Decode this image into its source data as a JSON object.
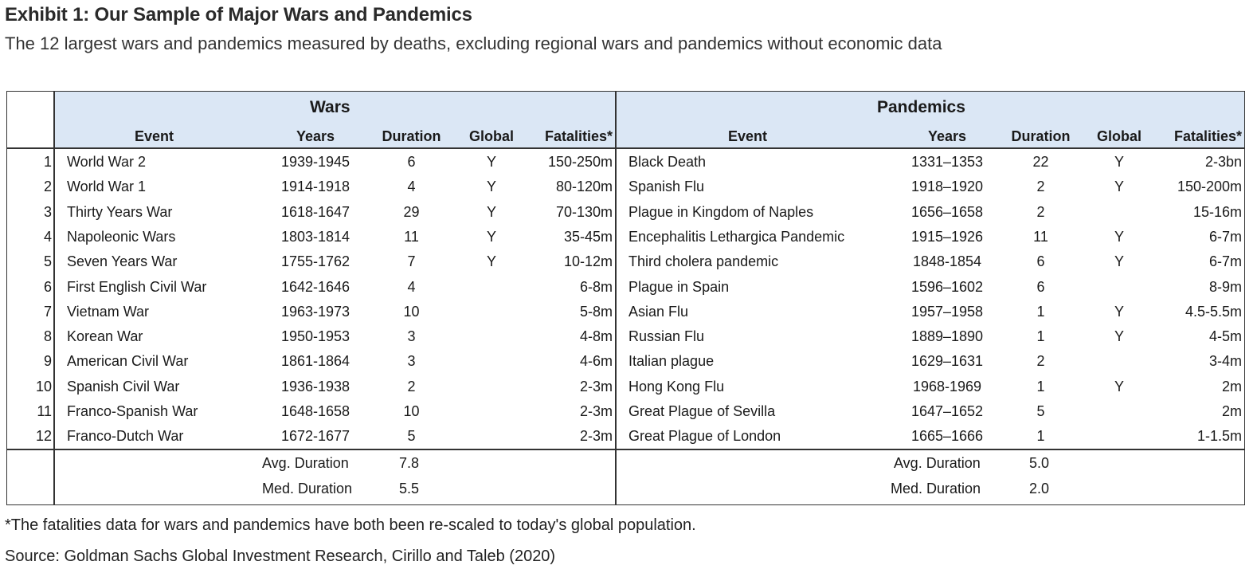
{
  "title": "Exhibit 1: Our Sample of Major Wars and Pandemics",
  "subtitle": "The 12 largest wars and pandemics measured by deaths, excluding regional wars and pandemics without economic data",
  "wars": {
    "group_title": "Wars",
    "headers": {
      "event": "Event",
      "years": "Years",
      "duration": "Duration",
      "global": "Global",
      "fatalities": "Fatalities*"
    },
    "rows": [
      {
        "num": "1",
        "event": "World War 2",
        "years": "1939-1945",
        "duration": "6",
        "global": "Y",
        "fatalities": "150-250m"
      },
      {
        "num": "2",
        "event": "World War 1",
        "years": "1914-1918",
        "duration": "4",
        "global": "Y",
        "fatalities": "80-120m"
      },
      {
        "num": "3",
        "event": "Thirty Years War",
        "years": "1618-1647",
        "duration": "29",
        "global": "Y",
        "fatalities": "70-130m"
      },
      {
        "num": "4",
        "event": "Napoleonic Wars",
        "years": "1803-1814",
        "duration": "11",
        "global": "Y",
        "fatalities": "35-45m"
      },
      {
        "num": "5",
        "event": "Seven Years War",
        "years": "1755-1762",
        "duration": "7",
        "global": "Y",
        "fatalities": "10-12m"
      },
      {
        "num": "6",
        "event": "First English Civil War",
        "years": "1642-1646",
        "duration": "4",
        "global": "",
        "fatalities": "6-8m"
      },
      {
        "num": "7",
        "event": "Vietnam War",
        "years": "1963-1973",
        "duration": "10",
        "global": "",
        "fatalities": "5-8m"
      },
      {
        "num": "8",
        "event": "Korean War",
        "years": "1950-1953",
        "duration": "3",
        "global": "",
        "fatalities": "4-8m"
      },
      {
        "num": "9",
        "event": "American Civil War",
        "years": "1861-1864",
        "duration": "3",
        "global": "",
        "fatalities": "4-6m"
      },
      {
        "num": "10",
        "event": "Spanish Civil War",
        "years": "1936-1938",
        "duration": "2",
        "global": "",
        "fatalities": "2-3m"
      },
      {
        "num": "11",
        "event": "Franco-Spanish War",
        "years": "1648-1658",
        "duration": "10",
        "global": "",
        "fatalities": "2-3m"
      },
      {
        "num": "12",
        "event": "Franco-Dutch War",
        "years": "1672-1677",
        "duration": "5",
        "global": "",
        "fatalities": "2-3m"
      }
    ],
    "avg_label": "Avg. Duration",
    "avg_value": "7.8",
    "med_label": "Med. Duration",
    "med_value": "5.5"
  },
  "pandemics": {
    "group_title": "Pandemics",
    "headers": {
      "event": "Event",
      "years": "Years",
      "duration": "Duration",
      "global": "Global",
      "fatalities": "Fatalities*"
    },
    "rows": [
      {
        "event": "Black Death",
        "years": "1331–1353",
        "duration": "22",
        "global": "Y",
        "fatalities": "2-3bn"
      },
      {
        "event": "Spanish Flu",
        "years": "1918–1920",
        "duration": "2",
        "global": "Y",
        "fatalities": "150-200m"
      },
      {
        "event": "Plague in Kingdom of Naples",
        "years": "1656–1658",
        "duration": "2",
        "global": "",
        "fatalities": "15-16m"
      },
      {
        "event": "Encephalitis Lethargica Pandemic",
        "years": "1915–1926",
        "duration": "11",
        "global": "Y",
        "fatalities": "6-7m"
      },
      {
        "event": "Third cholera pandemic",
        "years": "1848-1854",
        "duration": "6",
        "global": "Y",
        "fatalities": "6-7m"
      },
      {
        "event": "Plague in Spain",
        "years": "1596–1602",
        "duration": "6",
        "global": "",
        "fatalities": "8-9m"
      },
      {
        "event": "Asian Flu",
        "years": "1957–1958",
        "duration": "1",
        "global": "Y",
        "fatalities": "4.5-5.5m"
      },
      {
        "event": "Russian Flu",
        "years": "1889–1890",
        "duration": "1",
        "global": "Y",
        "fatalities": "4-5m"
      },
      {
        "event": "Italian plague",
        "years": "1629–1631",
        "duration": "2",
        "global": "",
        "fatalities": "3-4m"
      },
      {
        "event": "Hong Kong Flu",
        "years": "1968-1969",
        "duration": "1",
        "global": "Y",
        "fatalities": "2m"
      },
      {
        "event": "Great Plague of Sevilla",
        "years": "1647–1652",
        "duration": "5",
        "global": "",
        "fatalities": "2m"
      },
      {
        "event": "Great Plague of London",
        "years": "1665–1666",
        "duration": "1",
        "global": "",
        "fatalities": "1-1.5m"
      }
    ],
    "avg_label": "Avg. Duration",
    "avg_value": "5.0",
    "med_label": "Med. Duration",
    "med_value": "2.0"
  },
  "footnote": "*The fatalities data for wars and pandemics have both been re-scaled to today's global population.",
  "source": "Source: Goldman Sachs Global Investment Research, Cirillo and Taleb (2020)",
  "colors": {
    "header_band": "#dbe7f5",
    "border": "#333333"
  }
}
